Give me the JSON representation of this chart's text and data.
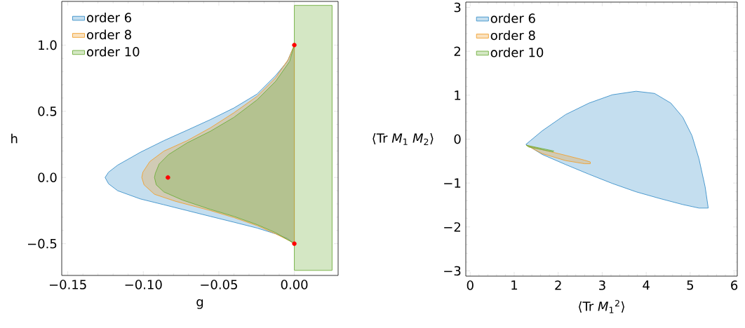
{
  "chart_data": [
    {
      "type": "area",
      "xlabel": "g",
      "ylabel": "h",
      "xlim": [
        -0.154,
        0.029
      ],
      "ylim": [
        -0.74,
        1.33
      ],
      "xticks": [
        {
          "value": -0.15,
          "label": "−0.15"
        },
        {
          "value": -0.1,
          "label": "−0.10"
        },
        {
          "value": -0.05,
          "label": "−0.05"
        },
        {
          "value": 0,
          "label": "0.00"
        }
      ],
      "yticks": [
        {
          "value": -0.5,
          "label": "−0.5"
        },
        {
          "value": 0,
          "label": "0.0"
        },
        {
          "value": 0.5,
          "label": "0.5"
        },
        {
          "value": 1,
          "label": "1.0"
        }
      ],
      "legend": "top left",
      "series": [
        {
          "name": "order 6",
          "color": "#3c91c9",
          "x": [
            0,
            -0.0046,
            -0.0123,
            -0.0247,
            -0.04,
            -0.0556,
            -0.071,
            -0.0864,
            -0.102,
            -0.117,
            -0.123,
            -0.1253,
            -0.123,
            -0.117,
            -0.102,
            -0.0864,
            -0.071,
            -0.0556,
            -0.04,
            -0.0247,
            -0.0123,
            -0.0046,
            0
          ],
          "values": [
            1.0,
            0.877,
            0.771,
            0.63,
            0.525,
            0.437,
            0.357,
            0.278,
            0.19,
            0.093,
            0.04,
            0,
            -0.048,
            -0.1,
            -0.162,
            -0.206,
            -0.25,
            -0.294,
            -0.338,
            -0.382,
            -0.426,
            -0.461,
            -0.5
          ]
        },
        {
          "name": "order 8",
          "color": "#f0a030",
          "x": [
            0,
            -0.0039,
            -0.0123,
            -0.0247,
            -0.04,
            -0.0556,
            -0.071,
            -0.0864,
            -0.0957,
            -0.1003,
            -0.101,
            -0.0995,
            -0.0926,
            -0.0787,
            -0.0556,
            -0.04,
            -0.0247,
            -0.0123,
            -0.0031,
            0
          ],
          "values": [
            1.0,
            0.894,
            0.754,
            0.613,
            0.489,
            0.375,
            0.278,
            0.199,
            0.12,
            0.04,
            0,
            -0.056,
            -0.127,
            -0.18,
            -0.25,
            -0.303,
            -0.364,
            -0.426,
            -0.479,
            -0.5
          ]
        },
        {
          "name": "order 10",
          "color": "#6fae3c",
          "x": [
            0,
            -0.0031,
            -0.0123,
            -0.0247,
            -0.04,
            -0.0556,
            -0.071,
            -0.0833,
            -0.0895,
            -0.092,
            -0.0926,
            -0.0914,
            -0.0864,
            -0.074,
            -0.0556,
            -0.04,
            -0.0247,
            -0.0123,
            -0.0031,
            0,
            0,
            0.025,
            0.025,
            0
          ],
          "values": [
            1.0,
            0.877,
            0.727,
            0.586,
            0.454,
            0.349,
            0.261,
            0.173,
            0.102,
            0.032,
            0,
            -0.056,
            -0.109,
            -0.171,
            -0.241,
            -0.294,
            -0.356,
            -0.417,
            -0.479,
            -0.5,
            -0.702,
            -0.702,
            1.3,
            1.3
          ]
        },
        {
          "type": "scatter",
          "color": "#ff0000",
          "marker": "circle",
          "x": [
            0,
            -0.0837,
            0
          ],
          "values": [
            1.0,
            0,
            -0.5
          ]
        }
      ]
    },
    {
      "type": "area",
      "xlabel": "⟨Tr *M*$_{1}$$^{2}$⟩",
      "ylabel": "⟨Tr *M*$_{1}$ *M*$_{2}$⟩",
      "xlim": [
        -0.1,
        6.07
      ],
      "ylim": [
        -3.12,
        3.12
      ],
      "xticks": [
        0,
        1,
        2,
        3,
        4,
        5,
        6
      ],
      "yticks": [
        {
          "value": -3,
          "label": "−3"
        },
        {
          "value": -2,
          "label": "−2"
        },
        {
          "value": -1,
          "label": "−1"
        },
        0,
        1,
        2,
        3
      ],
      "legend": "top left",
      "series": [
        {
          "name": "order 6",
          "color": "#3c91c9",
          "x": [
            1.266,
            1.638,
            2.17,
            2.7,
            3.23,
            3.77,
            4.19,
            4.56,
            4.83,
            5.04,
            5.2,
            5.34,
            5.41,
            5.2,
            4.83,
            4.3,
            3.77,
            3.23,
            2.7,
            2.17,
            1.638
          ],
          "values": [
            -0.12,
            0.19,
            0.56,
            0.82,
            1.01,
            1.09,
            1.04,
            0.82,
            0.5,
            0.08,
            -0.45,
            -1.09,
            -1.57,
            -1.57,
            -1.49,
            -1.35,
            -1.2,
            -1.01,
            -0.8,
            -0.58,
            -0.35
          ]
        },
        {
          "name": "order 8",
          "color": "#f0a030",
          "x": [
            1.277,
            1.638,
            2.17,
            2.6,
            2.73,
            2.73,
            2.6,
            2.17,
            1.638
          ],
          "values": [
            -0.14,
            -0.24,
            -0.37,
            -0.48,
            -0.52,
            -0.56,
            -0.56,
            -0.49,
            -0.33
          ]
        },
        {
          "name": "order 10",
          "color": "#6fae3c",
          "x": [
            1.277,
            1.9,
            1.88,
            1.33
          ],
          "values": [
            -0.14,
            -0.27,
            -0.29,
            -0.18
          ]
        }
      ]
    }
  ]
}
